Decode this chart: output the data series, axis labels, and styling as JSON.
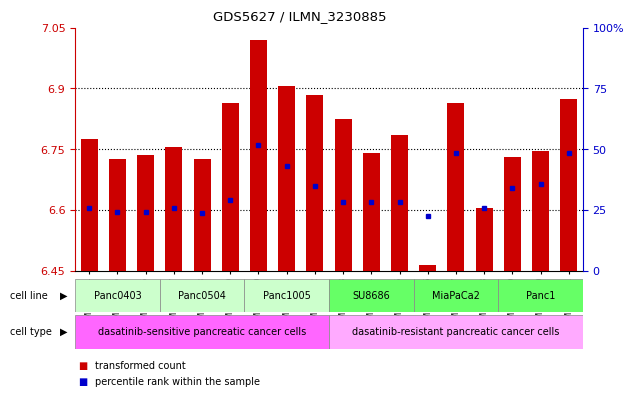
{
  "title": "GDS5627 / ILMN_3230885",
  "samples": [
    "GSM1435684",
    "GSM1435685",
    "GSM1435686",
    "GSM1435687",
    "GSM1435688",
    "GSM1435689",
    "GSM1435690",
    "GSM1435691",
    "GSM1435692",
    "GSM1435693",
    "GSM1435694",
    "GSM1435695",
    "GSM1435696",
    "GSM1435697",
    "GSM1435698",
    "GSM1435699",
    "GSM1435700",
    "GSM1435701"
  ],
  "bar_heights": [
    6.775,
    6.725,
    6.735,
    6.755,
    6.725,
    6.865,
    7.02,
    6.905,
    6.885,
    6.825,
    6.74,
    6.785,
    6.465,
    6.865,
    6.605,
    6.73,
    6.745,
    6.875
  ],
  "blue_dot_y": [
    6.605,
    6.595,
    6.595,
    6.605,
    6.593,
    6.625,
    6.76,
    6.71,
    6.66,
    6.62,
    6.62,
    6.62,
    6.585,
    6.74,
    6.605,
    6.655,
    6.665,
    6.74
  ],
  "ymin": 6.45,
  "ymax": 7.05,
  "yticks": [
    6.45,
    6.6,
    6.75,
    6.9,
    7.05
  ],
  "ytick_labels": [
    "6.45",
    "6.6",
    "6.75",
    "6.9",
    "7.05"
  ],
  "right_yticks": [
    0,
    25,
    50,
    75,
    100
  ],
  "right_ytick_labels": [
    "0",
    "25",
    "50",
    "75",
    "100%"
  ],
  "dotted_lines": [
    6.6,
    6.75,
    6.9
  ],
  "bar_color": "#cc0000",
  "dot_color": "#0000cc",
  "bar_bottom": 6.45,
  "cell_lines": [
    {
      "label": "Panc0403",
      "start": 0,
      "end": 2,
      "color": "#ccffcc"
    },
    {
      "label": "Panc0504",
      "start": 3,
      "end": 5,
      "color": "#ccffcc"
    },
    {
      "label": "Panc1005",
      "start": 6,
      "end": 8,
      "color": "#ccffcc"
    },
    {
      "label": "SU8686",
      "start": 9,
      "end": 11,
      "color": "#66ff66"
    },
    {
      "label": "MiaPaCa2",
      "start": 12,
      "end": 14,
      "color": "#66ff66"
    },
    {
      "label": "Panc1",
      "start": 15,
      "end": 17,
      "color": "#66ff66"
    }
  ],
  "cell_types": [
    {
      "label": "dasatinib-sensitive pancreatic cancer cells",
      "start": 0,
      "end": 8,
      "color": "#ff66ff"
    },
    {
      "label": "dasatinib-resistant pancreatic cancer cells",
      "start": 9,
      "end": 17,
      "color": "#ffaaff"
    }
  ],
  "bg_color": "#ffffff",
  "axis_color": "#cc0000",
  "right_axis_color": "#0000cc",
  "cell_line_label": "cell line",
  "cell_type_label": "cell type",
  "legend": [
    {
      "color": "#cc0000",
      "label": "transformed count"
    },
    {
      "color": "#0000cc",
      "label": "percentile rank within the sample"
    }
  ]
}
